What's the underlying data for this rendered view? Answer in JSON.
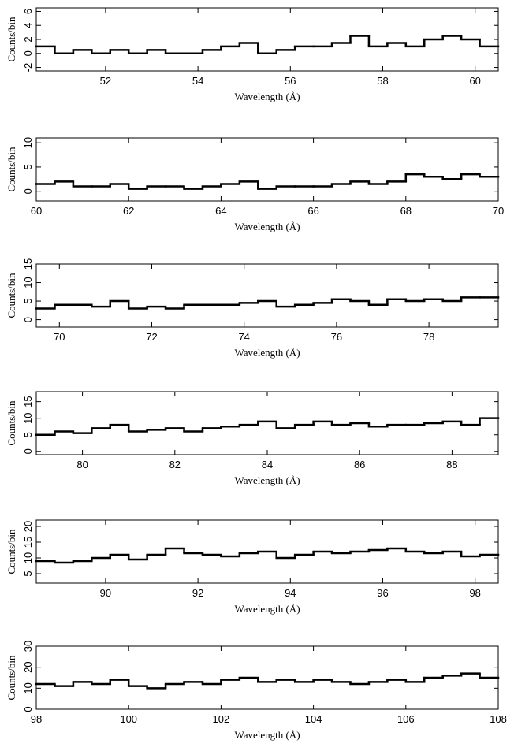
{
  "chart_data": [
    {
      "type": "histogram",
      "xlabel": "Wavelength (Å)",
      "ylabel": "Counts/bin",
      "color": "#000000",
      "bins": [
        50.5,
        50.9,
        51.3,
        51.7,
        52.1,
        52.5,
        52.9,
        53.3,
        53.7,
        54.1,
        54.5,
        54.9,
        55.3,
        55.7,
        56.1,
        56.5,
        56.9,
        57.3,
        57.7,
        58.1,
        58.5,
        58.9,
        59.3,
        59.7,
        60.1,
        60.5
      ],
      "values": [
        1,
        0,
        0.5,
        0,
        0.5,
        0,
        0.5,
        0,
        0,
        0.5,
        1,
        1.5,
        0,
        0.5,
        1,
        1,
        1.5,
        2.5,
        1,
        1.5,
        1,
        2,
        2.5,
        2,
        1
      ],
      "xlim": [
        50.5,
        60.5
      ],
      "ylim": [
        -2.5,
        6.5
      ],
      "xticks": [
        52,
        54,
        56,
        58,
        60
      ],
      "yticks": [
        -2,
        0,
        2,
        4,
        6
      ]
    },
    {
      "type": "histogram",
      "xlabel": "Wavelength (Å)",
      "ylabel": "Counts/bin",
      "color": "#000000",
      "bins": [
        60,
        60.4,
        60.8,
        61.2,
        61.6,
        62,
        62.4,
        62.8,
        63.2,
        63.6,
        64,
        64.4,
        64.8,
        65.2,
        65.6,
        66,
        66.4,
        66.8,
        67.2,
        67.6,
        68,
        68.4,
        68.8,
        69.2,
        69.6,
        70
      ],
      "values": [
        1.5,
        2,
        1,
        1,
        1.5,
        0.5,
        1,
        1,
        0.5,
        1,
        1.5,
        2,
        0.5,
        1,
        1,
        1,
        1.5,
        2,
        1.5,
        2,
        3.5,
        3,
        2.5,
        3.5,
        3
      ],
      "xlim": [
        60,
        70
      ],
      "ylim": [
        -2,
        11
      ],
      "xticks": [
        60,
        62,
        64,
        66,
        68,
        70
      ],
      "yticks": [
        0,
        5,
        10
      ]
    },
    {
      "type": "histogram",
      "xlabel": "Wavelength (Å)",
      "ylabel": "Counts/bin",
      "color": "#000000",
      "bins": [
        69.5,
        69.9,
        70.3,
        70.7,
        71.1,
        71.5,
        71.9,
        72.3,
        72.7,
        73.1,
        73.5,
        73.9,
        74.3,
        74.7,
        75.1,
        75.5,
        75.9,
        76.3,
        76.7,
        77.1,
        77.5,
        77.9,
        78.3,
        78.7,
        79.1,
        79.5
      ],
      "values": [
        3,
        4,
        4,
        3.5,
        5,
        3,
        3.5,
        3,
        4,
        4,
        4,
        4.5,
        5,
        3.5,
        4,
        4.5,
        5.5,
        5,
        4,
        5.5,
        5,
        5.5,
        5,
        6,
        6
      ],
      "xlim": [
        69.5,
        79.5
      ],
      "ylim": [
        -2,
        15
      ],
      "xticks": [
        70,
        72,
        74,
        76,
        78
      ],
      "yticks": [
        0,
        5,
        10,
        15
      ]
    },
    {
      "type": "histogram",
      "xlabel": "Wavelength (Å)",
      "ylabel": "Counts/bin",
      "color": "#000000",
      "bins": [
        79,
        79.4,
        79.8,
        80.2,
        80.6,
        81,
        81.4,
        81.8,
        82.2,
        82.6,
        83,
        83.4,
        83.8,
        84.2,
        84.6,
        85,
        85.4,
        85.8,
        86.2,
        86.6,
        87,
        87.4,
        87.8,
        88.2,
        88.6,
        89
      ],
      "values": [
        5,
        6,
        5.5,
        7,
        8,
        6,
        6.5,
        7,
        6,
        7,
        7.5,
        8,
        9,
        7,
        8,
        9,
        8,
        8.5,
        7.5,
        8,
        8,
        8.5,
        9,
        8,
        10
      ],
      "xlim": [
        79,
        89
      ],
      "ylim": [
        -1,
        18
      ],
      "xticks": [
        80,
        82,
        84,
        86,
        88
      ],
      "yticks": [
        0,
        5,
        10,
        15
      ]
    },
    {
      "type": "histogram",
      "xlabel": "Wavelength (Å)",
      "ylabel": "Counts/bin",
      "color": "#000000",
      "bins": [
        88.5,
        88.9,
        89.3,
        89.7,
        90.1,
        90.5,
        90.9,
        91.3,
        91.7,
        92.1,
        92.5,
        92.9,
        93.3,
        93.7,
        94.1,
        94.5,
        94.9,
        95.3,
        95.7,
        96.1,
        96.5,
        96.9,
        97.3,
        97.7,
        98.1,
        98.5
      ],
      "values": [
        9,
        8.5,
        9,
        10,
        11,
        9.5,
        11,
        13,
        11.5,
        11,
        10.5,
        11.5,
        12,
        10,
        11,
        12,
        11.5,
        12,
        12.5,
        13,
        12,
        11.5,
        12,
        10.5,
        11
      ],
      "xlim": [
        88.5,
        98.5
      ],
      "ylim": [
        2,
        22
      ],
      "xticks": [
        90,
        92,
        94,
        96,
        98
      ],
      "yticks": [
        5,
        10,
        15,
        20
      ]
    },
    {
      "type": "histogram",
      "xlabel": "Wavelength (Å)",
      "ylabel": "Counts/bin",
      "color": "#000000",
      "bins": [
        98,
        98.4,
        98.8,
        99.2,
        99.6,
        100,
        100.4,
        100.8,
        101.2,
        101.6,
        102,
        102.4,
        102.8,
        103.2,
        103.6,
        104,
        104.4,
        104.8,
        105.2,
        105.6,
        106,
        106.4,
        106.8,
        107.2,
        107.6,
        108
      ],
      "values": [
        12,
        11,
        13,
        12,
        14,
        11,
        10,
        12,
        13,
        12,
        14,
        15,
        13,
        14,
        13,
        14,
        13,
        12,
        13,
        14,
        13,
        15,
        16,
        17,
        15
      ],
      "xlim": [
        98,
        108
      ],
      "ylim": [
        0,
        30
      ],
      "xticks": [
        98,
        100,
        102,
        104,
        106,
        108
      ],
      "yticks": [
        0,
        10,
        20,
        30
      ]
    }
  ]
}
